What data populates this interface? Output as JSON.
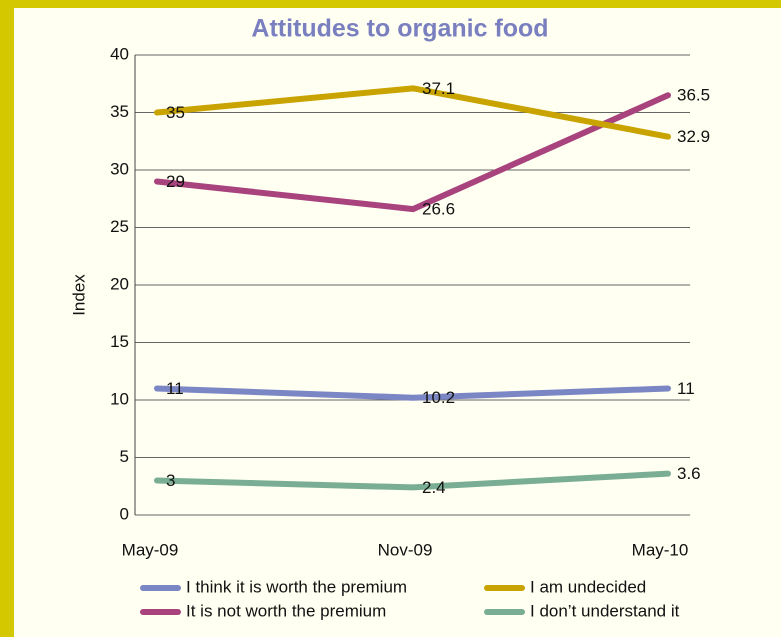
{
  "chart_data": {
    "type": "line",
    "title": "Attitudes to organic food",
    "y_label": "Index",
    "categories": [
      "May-09",
      "Nov-09",
      "May-10"
    ],
    "series": [
      {
        "name": "I think it is worth the premium",
        "color": "#7b86c4",
        "values": [
          11,
          10.2,
          11
        ]
      },
      {
        "name": "It is not worth the premium",
        "color": "#a8437e",
        "values": [
          29,
          26.6,
          36.5
        ]
      },
      {
        "name": "I am undecided",
        "color": "#c9a400",
        "values": [
          35,
          37.1,
          32.9
        ]
      },
      {
        "name": "I don’t understand it",
        "color": "#7aae94",
        "values": [
          3,
          2.4,
          3.6
        ]
      }
    ],
    "ylim": [
      0,
      40
    ],
    "yticks": [
      0,
      5,
      10,
      15,
      20,
      25,
      30,
      35,
      40
    ],
    "grid": true,
    "legend": "bottom"
  }
}
